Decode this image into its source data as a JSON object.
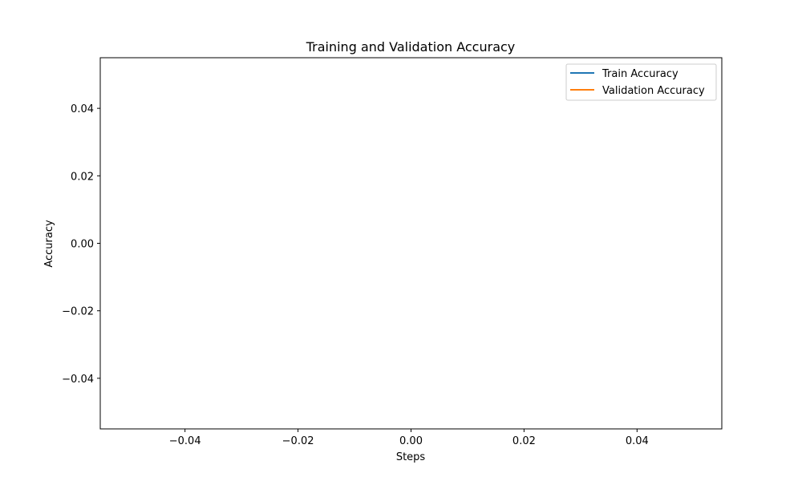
{
  "chart_data": {
    "type": "line",
    "title": "Training and Validation Accuracy",
    "xlabel": "Steps",
    "ylabel": "Accuracy",
    "xlim": [
      -0.055,
      0.055
    ],
    "ylim": [
      -0.055,
      0.055
    ],
    "xticks": [
      -0.04,
      -0.02,
      0.0,
      0.02,
      0.04
    ],
    "xtick_labels": [
      "−0.04",
      "−0.02",
      "0.00",
      "0.02",
      "0.04"
    ],
    "yticks": [
      -0.04,
      -0.02,
      0.0,
      0.02,
      0.04
    ],
    "ytick_labels": [
      "−0.04",
      "−0.02",
      "0.00",
      "0.02",
      "0.04"
    ],
    "grid": false,
    "legend": "top-right",
    "series": [
      {
        "name": "Train Accuracy",
        "color": "#1f77b4",
        "x": [],
        "y": []
      },
      {
        "name": "Validation Accuracy",
        "color": "#ff7f0e",
        "x": [],
        "y": []
      }
    ]
  }
}
